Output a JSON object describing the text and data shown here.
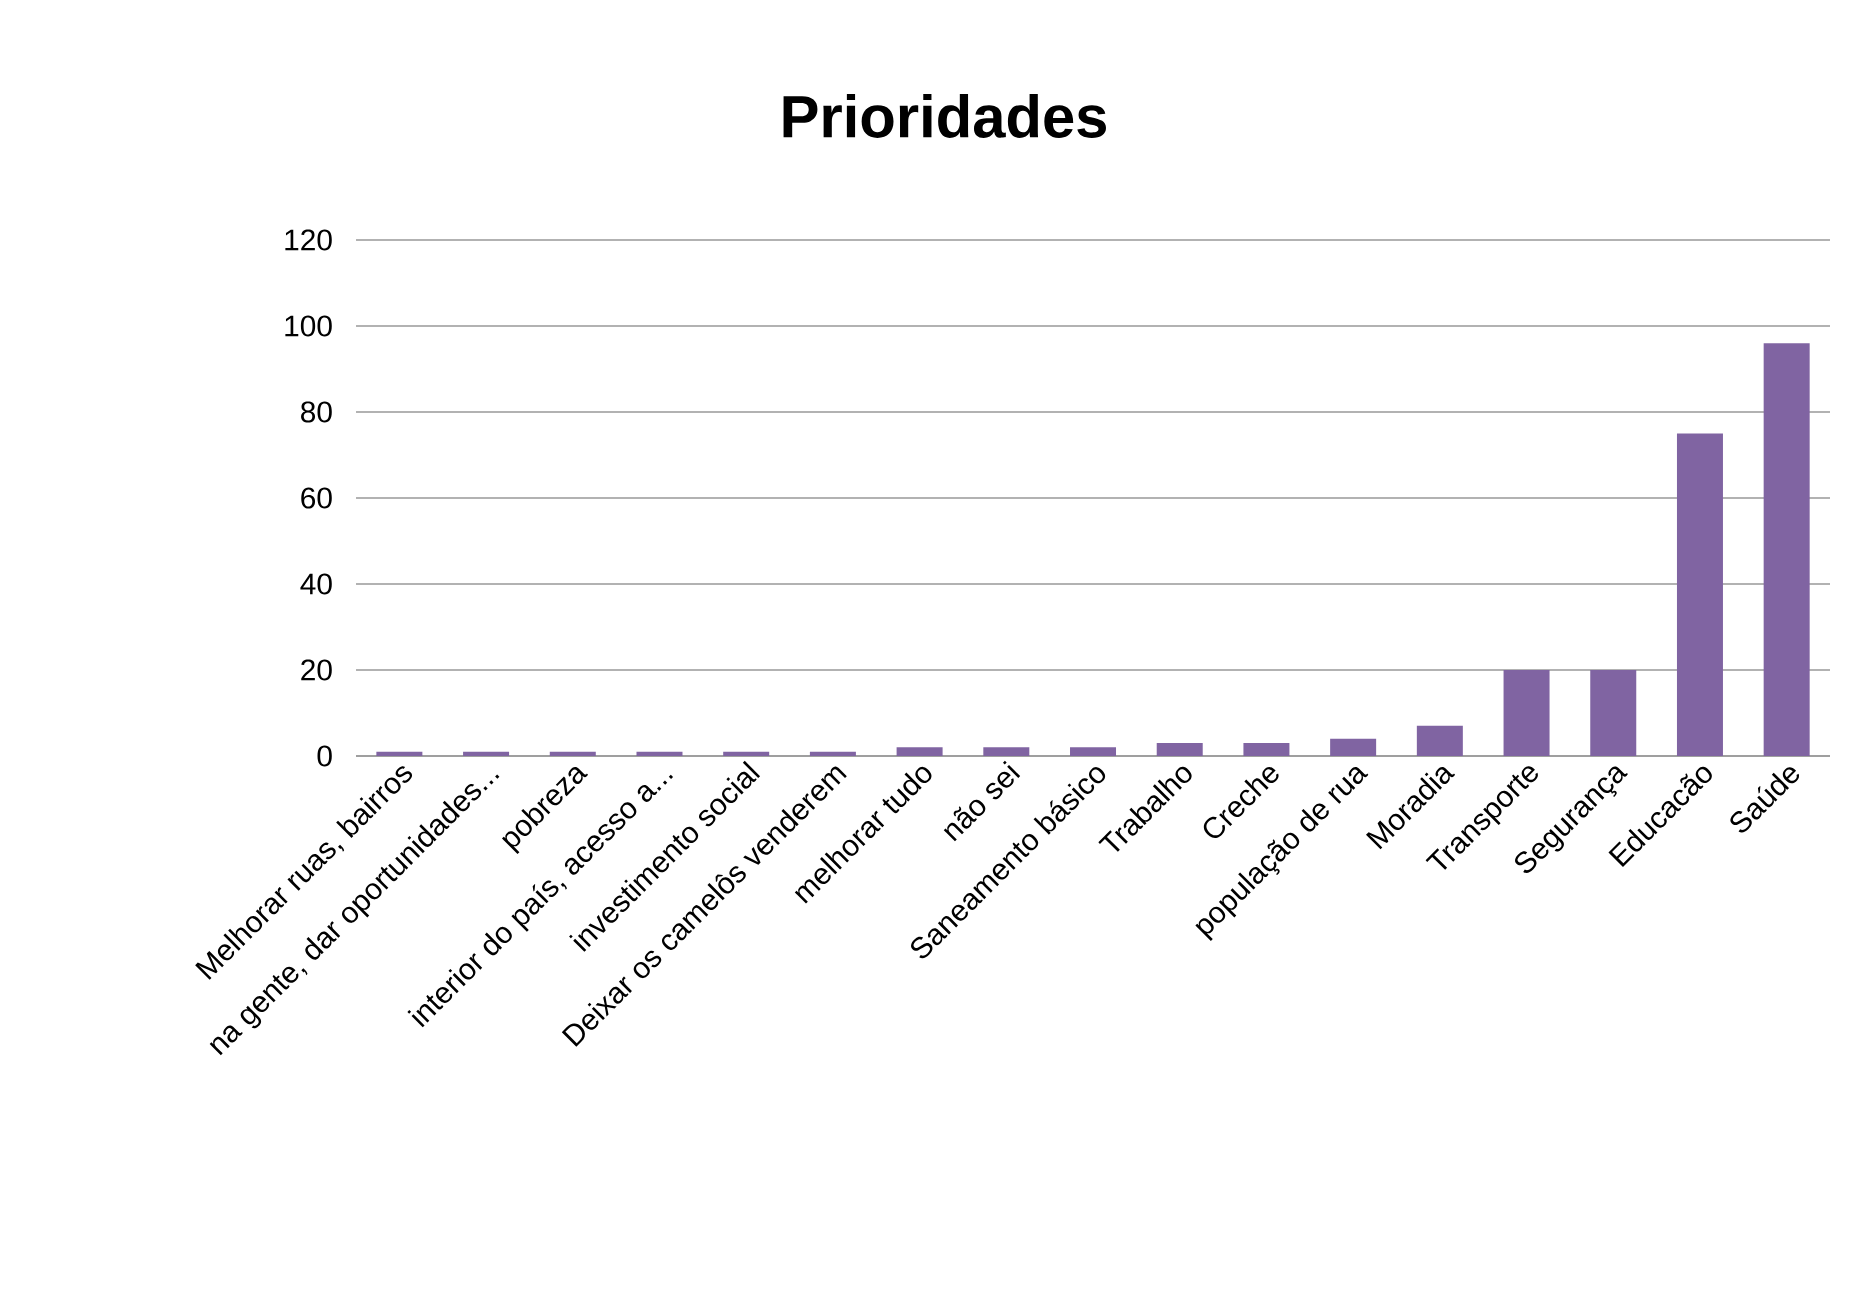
{
  "chart_data": {
    "type": "bar",
    "title": "Prioridades",
    "categories": [
      "Melhorar ruas, bairros",
      "na gente, dar oportunidades...",
      "pobreza",
      "interior do país, acesso a...",
      "investimento social",
      "Deixar os camelôs  venderem",
      "melhorar tudo",
      "não sei",
      "Saneamento básico",
      "Trabalho",
      "Creche",
      "população de rua",
      "Moradia",
      "Transporte",
      "Segurança",
      "Educacão",
      "Saúde"
    ],
    "values": [
      1,
      1,
      1,
      1,
      1,
      1,
      2,
      2,
      2,
      3,
      3,
      4,
      7,
      20,
      20,
      75,
      96
    ],
    "color": "#8064a2",
    "ylim": [
      0,
      120
    ],
    "yticks": [
      0,
      20,
      40,
      60,
      80,
      100,
      120
    ],
    "grid": "y"
  }
}
